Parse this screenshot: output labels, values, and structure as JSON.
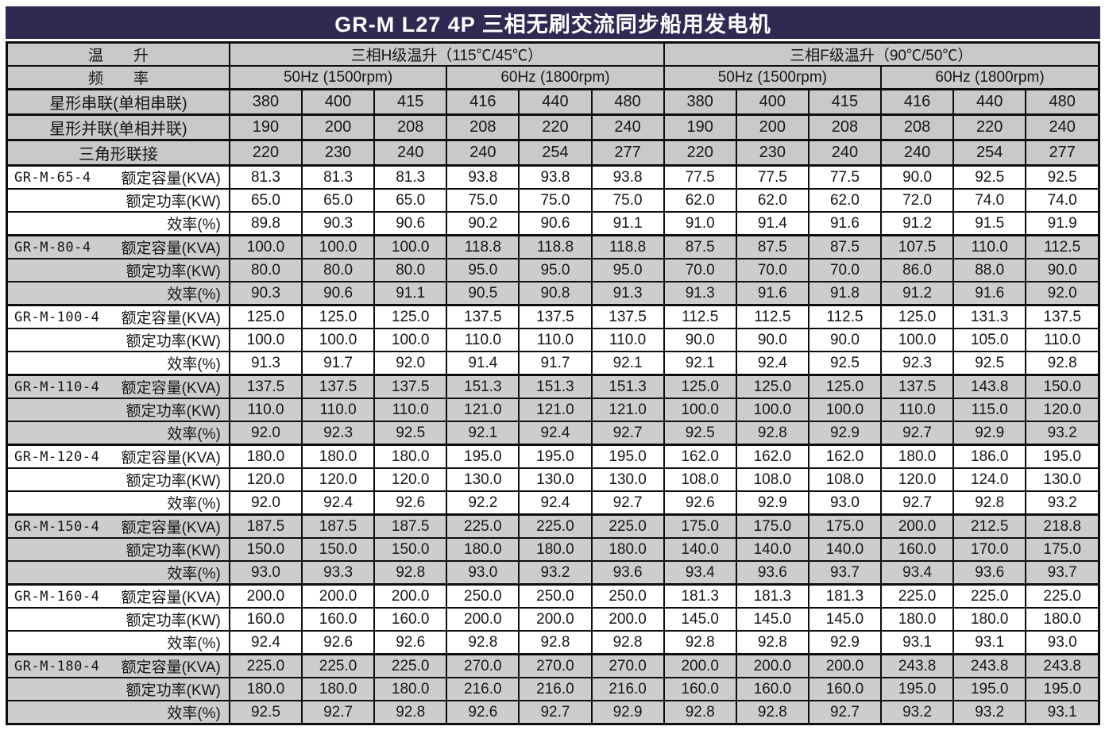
{
  "title": "GR-M L27 4P 三相无刷交流同步船用发电机",
  "header": {
    "temp_rise_label": "温　　升",
    "frequency_label": "频　　率",
    "temp_classes": [
      "三相H级温升（115℃/45℃）",
      "三相F级温升（90℃/50℃）"
    ],
    "frequencies": [
      "50Hz (1500rpm)",
      "60Hz (1800rpm)",
      "50Hz (1500rpm)",
      "60Hz (1800rpm)"
    ],
    "voltage_rows": [
      {
        "label": "星形串联(单相串联)",
        "values": [
          380,
          400,
          415,
          416,
          440,
          480,
          380,
          400,
          415,
          416,
          440,
          480
        ]
      },
      {
        "label": "星形并联(单相并联)",
        "values": [
          190,
          200,
          208,
          208,
          220,
          240,
          190,
          200,
          208,
          208,
          220,
          240
        ]
      },
      {
        "label": "三角形联接",
        "values": [
          220,
          230,
          240,
          240,
          254,
          277,
          220,
          230,
          240,
          240,
          254,
          277
        ]
      }
    ]
  },
  "row_labels": {
    "kva": "额定容量(KVA)",
    "kw": "额定功率(KW)",
    "eff": "效率(%)"
  },
  "models": [
    {
      "name": "GR-M-65-4",
      "kva": [
        "81.3",
        "81.3",
        "81.3",
        "93.8",
        "93.8",
        "93.8",
        "77.5",
        "77.5",
        "77.5",
        "90.0",
        "92.5",
        "92.5"
      ],
      "kw": [
        "65.0",
        "65.0",
        "65.0",
        "75.0",
        "75.0",
        "75.0",
        "62.0",
        "62.0",
        "62.0",
        "72.0",
        "74.0",
        "74.0"
      ],
      "eff": [
        "89.8",
        "90.3",
        "90.6",
        "90.2",
        "90.6",
        "91.1",
        "91.0",
        "91.4",
        "91.6",
        "91.2",
        "91.5",
        "91.9"
      ]
    },
    {
      "name": "GR-M-80-4",
      "kva": [
        "100.0",
        "100.0",
        "100.0",
        "118.8",
        "118.8",
        "118.8",
        "87.5",
        "87.5",
        "87.5",
        "107.5",
        "110.0",
        "112.5"
      ],
      "kw": [
        "80.0",
        "80.0",
        "80.0",
        "95.0",
        "95.0",
        "95.0",
        "70.0",
        "70.0",
        "70.0",
        "86.0",
        "88.0",
        "90.0"
      ],
      "eff": [
        "90.3",
        "90.6",
        "91.1",
        "90.5",
        "90.8",
        "91.3",
        "91.3",
        "91.6",
        "91.8",
        "91.2",
        "91.6",
        "92.0"
      ]
    },
    {
      "name": "GR-M-100-4",
      "kva": [
        "125.0",
        "125.0",
        "125.0",
        "137.5",
        "137.5",
        "137.5",
        "112.5",
        "112.5",
        "112.5",
        "125.0",
        "131.3",
        "137.5"
      ],
      "kw": [
        "100.0",
        "100.0",
        "100.0",
        "110.0",
        "110.0",
        "110.0",
        "90.0",
        "90.0",
        "90.0",
        "100.0",
        "105.0",
        "110.0"
      ],
      "eff": [
        "91.3",
        "91.7",
        "92.0",
        "91.4",
        "91.7",
        "92.1",
        "92.1",
        "92.4",
        "92.5",
        "92.3",
        "92.5",
        "92.8"
      ]
    },
    {
      "name": "GR-M-110-4",
      "kva": [
        "137.5",
        "137.5",
        "137.5",
        "151.3",
        "151.3",
        "151.3",
        "125.0",
        "125.0",
        "125.0",
        "137.5",
        "143.8",
        "150.0"
      ],
      "kw": [
        "110.0",
        "110.0",
        "110.0",
        "121.0",
        "121.0",
        "121.0",
        "100.0",
        "100.0",
        "100.0",
        "110.0",
        "115.0",
        "120.0"
      ],
      "eff": [
        "92.0",
        "92.3",
        "92.5",
        "92.1",
        "92.4",
        "92.7",
        "92.5",
        "92.8",
        "92.9",
        "92.7",
        "92.9",
        "93.2"
      ]
    },
    {
      "name": "GR-M-120-4",
      "kva": [
        "180.0",
        "180.0",
        "180.0",
        "195.0",
        "195.0",
        "195.0",
        "162.0",
        "162.0",
        "162.0",
        "180.0",
        "186.0",
        "195.0"
      ],
      "kw": [
        "120.0",
        "120.0",
        "120.0",
        "130.0",
        "130.0",
        "130.0",
        "108.0",
        "108.0",
        "108.0",
        "120.0",
        "124.0",
        "130.0"
      ],
      "eff": [
        "92.0",
        "92.4",
        "92.6",
        "92.2",
        "92.4",
        "92.7",
        "92.6",
        "92.9",
        "93.0",
        "92.7",
        "92.8",
        "93.2"
      ]
    },
    {
      "name": "GR-M-150-4",
      "kva": [
        "187.5",
        "187.5",
        "187.5",
        "225.0",
        "225.0",
        "225.0",
        "175.0",
        "175.0",
        "175.0",
        "200.0",
        "212.5",
        "218.8"
      ],
      "kw": [
        "150.0",
        "150.0",
        "150.0",
        "180.0",
        "180.0",
        "180.0",
        "140.0",
        "140.0",
        "140.0",
        "160.0",
        "170.0",
        "175.0"
      ],
      "eff": [
        "93.0",
        "93.3",
        "92.8",
        "93.0",
        "93.2",
        "93.6",
        "93.4",
        "93.6",
        "93.7",
        "93.4",
        "93.6",
        "93.7"
      ]
    },
    {
      "name": "GR-M-160-4",
      "kva": [
        "200.0",
        "200.0",
        "200.0",
        "250.0",
        "250.0",
        "250.0",
        "181.3",
        "181.3",
        "181.3",
        "225.0",
        "225.0",
        "225.0"
      ],
      "kw": [
        "160.0",
        "160.0",
        "160.0",
        "200.0",
        "200.0",
        "200.0",
        "145.0",
        "145.0",
        "145.0",
        "180.0",
        "180.0",
        "180.0"
      ],
      "eff": [
        "92.4",
        "92.6",
        "92.6",
        "92.8",
        "92.8",
        "92.8",
        "92.8",
        "92.8",
        "92.9",
        "93.1",
        "93.1",
        "93.0"
      ]
    },
    {
      "name": "GR-M-180-4",
      "kva": [
        "225.0",
        "225.0",
        "225.0",
        "270.0",
        "270.0",
        "270.0",
        "200.0",
        "200.0",
        "200.0",
        "243.8",
        "243.8",
        "243.8"
      ],
      "kw": [
        "180.0",
        "180.0",
        "180.0",
        "216.0",
        "216.0",
        "216.0",
        "160.0",
        "160.0",
        "160.0",
        "195.0",
        "195.0",
        "195.0"
      ],
      "eff": [
        "92.5",
        "92.7",
        "92.8",
        "92.6",
        "92.7",
        "92.9",
        "92.8",
        "92.8",
        "92.7",
        "93.2",
        "93.2",
        "93.1"
      ]
    }
  ],
  "colors": {
    "title_bg": "#2e2a52",
    "title_text": "#ffffff",
    "header_bg": "#c9c9c9",
    "row_gray": "#cdcdcd",
    "row_white": "#ffffff",
    "border": "#0d0d0d",
    "text": "#161616"
  }
}
